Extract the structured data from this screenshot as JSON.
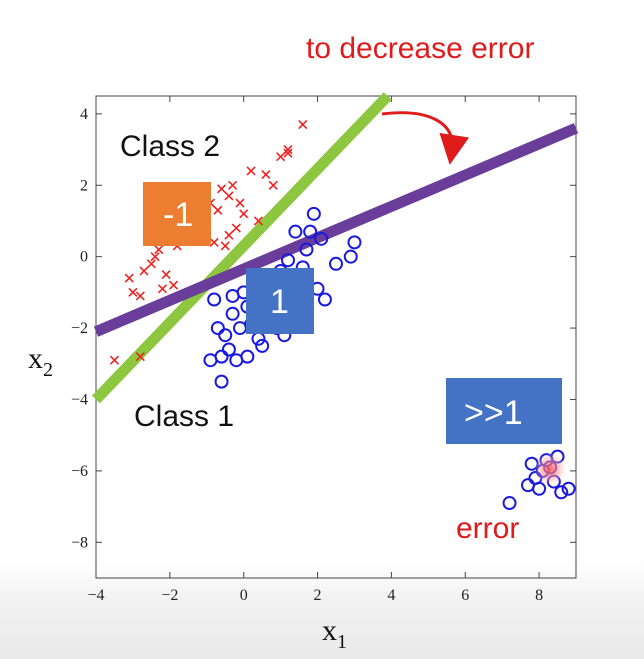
{
  "chart_data": {
    "type": "scatter",
    "xlabel": "x",
    "xlabel_sub": "1",
    "ylabel": "x",
    "ylabel_sub": "2",
    "xlim": [
      -4,
      9
    ],
    "ylim": [
      -9,
      4.5
    ],
    "xticks": [
      "−4",
      "−2",
      "0",
      "2",
      "4",
      "6",
      "8"
    ],
    "yticks": [
      "−8",
      "−6",
      "−4",
      "−2",
      "0",
      "2",
      "4"
    ],
    "xtick_values": [
      -4,
      -2,
      0,
      2,
      4,
      6,
      8
    ],
    "ytick_values": [
      -8,
      -6,
      -4,
      -2,
      0,
      2,
      4
    ],
    "grid": false,
    "series": [
      {
        "marker": "x",
        "color": "#ee2222",
        "points": [
          [
            -3.5,
            -2.9
          ],
          [
            -3.1,
            -0.6
          ],
          [
            -3.0,
            -1.0
          ],
          [
            -2.8,
            -1.1
          ],
          [
            -2.7,
            -0.4
          ],
          [
            -2.5,
            -0.2
          ],
          [
            -2.4,
            0.0
          ],
          [
            -2.3,
            0.2
          ],
          [
            -2.2,
            -0.9
          ],
          [
            -2.0,
            0.6
          ],
          [
            -1.9,
            -0.8
          ],
          [
            -1.8,
            0.3
          ],
          [
            -1.7,
            1.0
          ],
          [
            -1.6,
            1.6
          ],
          [
            -1.5,
            0.9
          ],
          [
            -1.5,
            0.5
          ],
          [
            -1.4,
            1.2
          ],
          [
            -1.3,
            0.7
          ],
          [
            -1.2,
            1.4
          ],
          [
            -1.1,
            0.8
          ],
          [
            -1.0,
            1.1
          ],
          [
            -0.9,
            1.5
          ],
          [
            -0.8,
            0.4
          ],
          [
            -0.7,
            1.3
          ],
          [
            -0.6,
            1.9
          ],
          [
            -0.5,
            0.3
          ],
          [
            -0.4,
            1.7
          ],
          [
            -0.3,
            2.0
          ],
          [
            -0.2,
            0.8
          ],
          [
            -0.1,
            1.5
          ],
          [
            0.0,
            1.2
          ],
          [
            0.2,
            2.4
          ],
          [
            0.4,
            1.0
          ],
          [
            0.6,
            2.3
          ],
          [
            0.8,
            2.0
          ],
          [
            1.0,
            2.8
          ],
          [
            1.2,
            3.0
          ],
          [
            1.2,
            2.9
          ],
          [
            1.6,
            3.7
          ],
          [
            -2.8,
            -2.8
          ],
          [
            -1.6,
            1.3
          ],
          [
            -0.4,
            0.6
          ],
          [
            -2.1,
            -0.5
          ]
        ]
      },
      {
        "marker": "o",
        "color": "#1a1adf",
        "points": [
          [
            -0.9,
            -2.9
          ],
          [
            -0.6,
            -3.5
          ],
          [
            -0.8,
            -1.2
          ],
          [
            -0.6,
            -2.8
          ],
          [
            -0.5,
            -2.2
          ],
          [
            -0.4,
            -2.6
          ],
          [
            -0.3,
            -1.6
          ],
          [
            -0.2,
            -2.9
          ],
          [
            -0.1,
            -2.0
          ],
          [
            0.0,
            -1.0
          ],
          [
            0.1,
            -2.8
          ],
          [
            0.1,
            -1.4
          ],
          [
            0.2,
            -1.9
          ],
          [
            0.3,
            -0.9
          ],
          [
            0.4,
            -2.3
          ],
          [
            0.5,
            -1.6
          ],
          [
            0.6,
            -0.6
          ],
          [
            0.7,
            -1.2
          ],
          [
            0.8,
            -0.8
          ],
          [
            0.9,
            -2.0
          ],
          [
            1.0,
            -0.4
          ],
          [
            1.1,
            -1.7
          ],
          [
            1.2,
            -0.1
          ],
          [
            1.3,
            -0.7
          ],
          [
            1.4,
            0.7
          ],
          [
            1.5,
            -1.4
          ],
          [
            1.6,
            -0.3
          ],
          [
            1.7,
            0.2
          ],
          [
            1.8,
            0.7
          ],
          [
            1.9,
            1.2
          ],
          [
            2.0,
            -0.9
          ],
          [
            2.1,
            0.5
          ],
          [
            2.2,
            -1.2
          ],
          [
            2.5,
            -0.2
          ],
          [
            2.9,
            0.0
          ],
          [
            3.0,
            0.4
          ],
          [
            -0.3,
            -1.1
          ],
          [
            0.5,
            -2.5
          ],
          [
            1.1,
            -2.2
          ],
          [
            -0.7,
            -2.0
          ],
          [
            7.2,
            -6.9
          ],
          [
            7.8,
            -5.8
          ],
          [
            7.9,
            -6.2
          ],
          [
            8.0,
            -6.5
          ],
          [
            8.1,
            -6.0
          ],
          [
            8.2,
            -5.7
          ],
          [
            8.3,
            -5.9
          ],
          [
            8.4,
            -6.3
          ],
          [
            8.5,
            -5.6
          ],
          [
            8.6,
            -6.6
          ],
          [
            8.8,
            -6.5
          ],
          [
            7.7,
            -6.4
          ]
        ]
      }
    ],
    "lines": [
      {
        "color": "#8dc63f",
        "points": [
          [
            -4,
            -4
          ],
          [
            3.9,
            4.5
          ]
        ]
      },
      {
        "color": "#6a3d9a",
        "points": [
          [
            -4,
            -2.1
          ],
          [
            9,
            3.6
          ]
        ]
      }
    ],
    "error_point": [
      8.3,
      -5.95
    ]
  },
  "labels": {
    "class2": "Class 2",
    "class1": "Class 1",
    "to_decrease_error": "to decrease error",
    "error": "error",
    "box_neg1": "-1",
    "box_1": "1",
    "box_gg1": ">>1"
  },
  "colors": {
    "orange_box": "#ed7d31",
    "blue_box": "#4472c4",
    "annotation_red": "#e01b1b"
  }
}
